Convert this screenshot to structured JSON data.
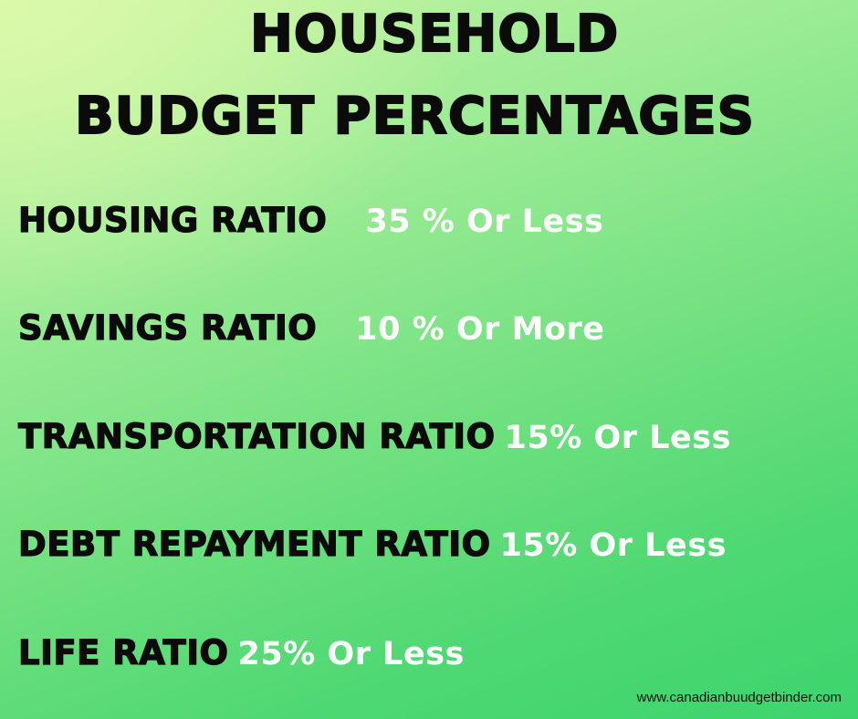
{
  "title": {
    "line1": "HOUSEHOLD",
    "line2": "BUDGET PERCENTAGES"
  },
  "ratios": [
    {
      "label": "HOUSING RATIO",
      "value": "35 % Or Less"
    },
    {
      "label": "SAVINGS RATIO",
      "value": "10 % Or More"
    },
    {
      "label": "TRANSPORTATION RATIO",
      "value": "15% Or Less"
    },
    {
      "label": "DEBT REPAYMENT RATIO",
      "value": "15% Or Less"
    },
    {
      "label": "LIFE RATIO",
      "value": "25% Or Less"
    }
  ],
  "website": "www.canadianbuudgetbinder.com",
  "colors": {
    "label_text": "#0b0b0b",
    "value_text": "#ffffff",
    "background_light": "#c6f4a3",
    "background_dark": "#3dd46d"
  }
}
